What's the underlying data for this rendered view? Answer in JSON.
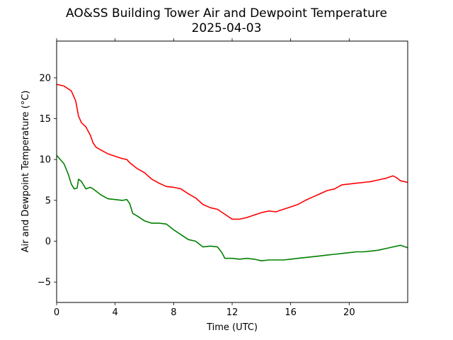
{
  "chart_data": {
    "type": "line",
    "title": "AO&SS Building Tower Air and Dewpoint Temperature",
    "subtitle": "2025-04-03",
    "xlabel": "Time (UTC)",
    "ylabel": "Air and Dewpoint Temperature (°C)",
    "xlim": [
      0,
      24
    ],
    "ylim": [
      -7.5,
      24.5
    ],
    "x_ticks": [
      0,
      4,
      8,
      12,
      16,
      20
    ],
    "y_ticks": [
      -5,
      0,
      5,
      10,
      15,
      20
    ],
    "grid": false,
    "legend": "none",
    "series": [
      {
        "color": "#ff0000",
        "x": [
          0,
          0.5,
          1,
          1.3,
          1.5,
          1.7,
          2,
          2.3,
          2.5,
          2.7,
          3,
          3.5,
          4,
          4.5,
          4.8,
          5,
          5.5,
          6,
          6.5,
          7,
          7.5,
          8,
          8.5,
          9,
          9.5,
          10,
          10.5,
          11,
          11.5,
          12,
          12.5,
          13,
          13.5,
          14,
          14.5,
          15,
          15.5,
          16,
          16.5,
          17,
          17.5,
          18,
          18.5,
          19,
          19.5,
          20,
          20.5,
          21,
          21.5,
          22,
          22.5,
          23,
          23.3,
          23.5,
          24
        ],
        "y": [
          19.2,
          19.0,
          18.4,
          17.2,
          15.3,
          14.5,
          14.0,
          13.0,
          12.0,
          11.5,
          11.2,
          10.7,
          10.4,
          10.1,
          10.0,
          9.6,
          8.9,
          8.4,
          7.6,
          7.1,
          6.7,
          6.6,
          6.4,
          5.8,
          5.3,
          4.5,
          4.1,
          3.9,
          3.3,
          2.7,
          2.7,
          2.9,
          3.2,
          3.5,
          3.7,
          3.6,
          3.9,
          4.2,
          4.5,
          5.0,
          5.4,
          5.8,
          6.2,
          6.4,
          6.9,
          7.0,
          7.1,
          7.2,
          7.3,
          7.5,
          7.7,
          8.0,
          7.7,
          7.4,
          7.2
        ]
      },
      {
        "color": "#008000",
        "x": [
          0,
          0.3,
          0.5,
          0.8,
          1,
          1.2,
          1.4,
          1.5,
          1.7,
          1.8,
          2,
          2.3,
          2.5,
          3,
          3.5,
          4,
          4.5,
          4.8,
          5,
          5.2,
          5.5,
          6,
          6.5,
          7,
          7.5,
          8,
          8.5,
          9,
          9.5,
          10,
          10.5,
          11,
          11.3,
          11.5,
          12,
          12.5,
          13,
          13.5,
          14,
          14.5,
          15,
          15.5,
          16,
          16.5,
          17,
          17.5,
          18,
          18.5,
          19,
          19.5,
          20,
          20.5,
          21,
          21.5,
          22,
          22.5,
          23,
          23.5,
          24
        ],
        "y": [
          10.5,
          9.9,
          9.5,
          8.2,
          7.0,
          6.4,
          6.5,
          7.6,
          7.3,
          7.0,
          6.4,
          6.6,
          6.4,
          5.7,
          5.2,
          5.1,
          5.0,
          5.1,
          4.6,
          3.4,
          3.1,
          2.5,
          2.2,
          2.2,
          2.1,
          1.4,
          0.8,
          0.2,
          0.0,
          -0.7,
          -0.6,
          -0.7,
          -1.4,
          -2.1,
          -2.1,
          -2.2,
          -2.1,
          -2.2,
          -2.4,
          -2.3,
          -2.3,
          -2.3,
          -2.2,
          -2.1,
          -2.0,
          -1.9,
          -1.8,
          -1.7,
          -1.6,
          -1.5,
          -1.4,
          -1.3,
          -1.3,
          -1.2,
          -1.1,
          -0.9,
          -0.7,
          -0.5,
          -0.8
        ]
      }
    ]
  }
}
